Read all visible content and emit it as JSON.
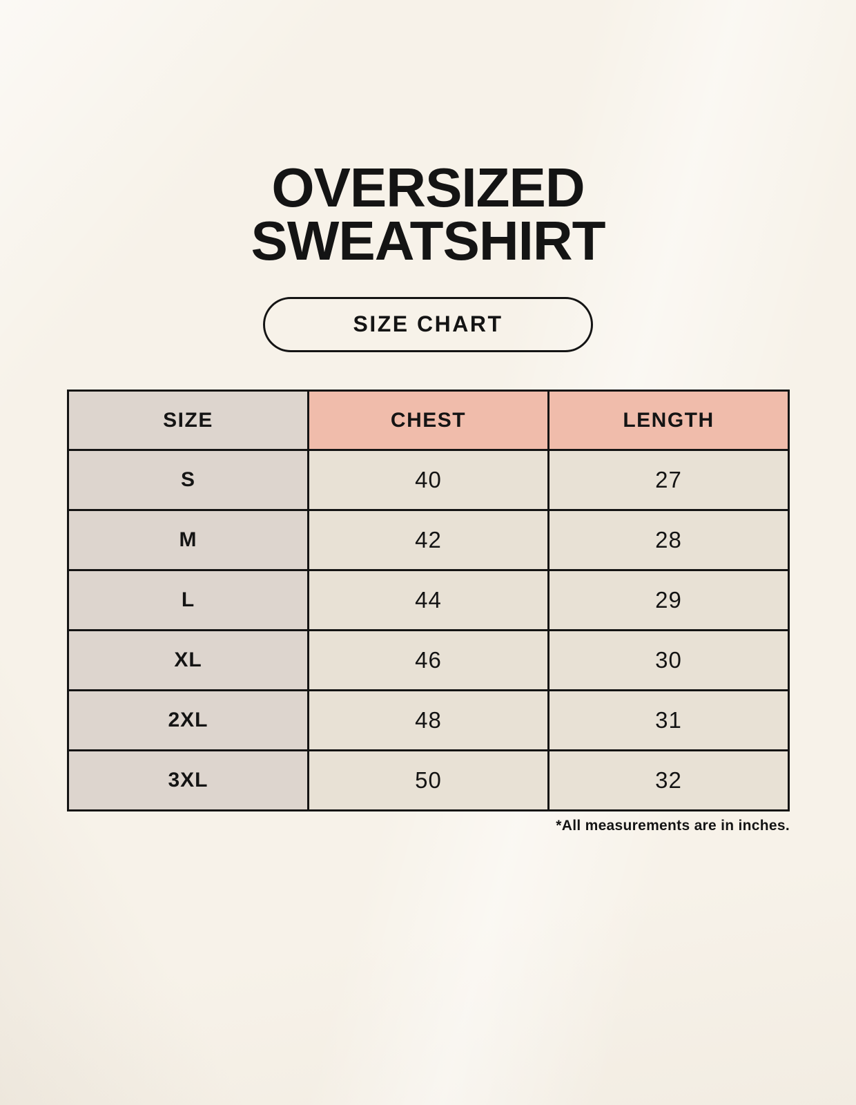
{
  "poster": {
    "title_line1": "OVERSIZED",
    "title_line2": "SWEATSHIRT",
    "badge_label": "SIZE CHART",
    "footnote": "*All measurements are in inches."
  },
  "chart_data": {
    "type": "table",
    "title": "OVERSIZED SWEATSHIRT",
    "subtitle": "SIZE CHART",
    "columns": [
      "SIZE",
      "CHEST",
      "LENGTH"
    ],
    "rows": [
      [
        "S",
        "40",
        "27"
      ],
      [
        "M",
        "42",
        "28"
      ],
      [
        "L",
        "44",
        "29"
      ],
      [
        "XL",
        "46",
        "30"
      ],
      [
        "2XL",
        "48",
        "31"
      ],
      [
        "3XL",
        "50",
        "32"
      ]
    ],
    "footnote": "*All measurements are in inches."
  },
  "colors": {
    "background": "#f7f2e9",
    "size_column": "#ddd5ce",
    "header_accent": "#f0bcab",
    "data_cell": "#e8e1d5",
    "line_and_text": "#141414"
  }
}
